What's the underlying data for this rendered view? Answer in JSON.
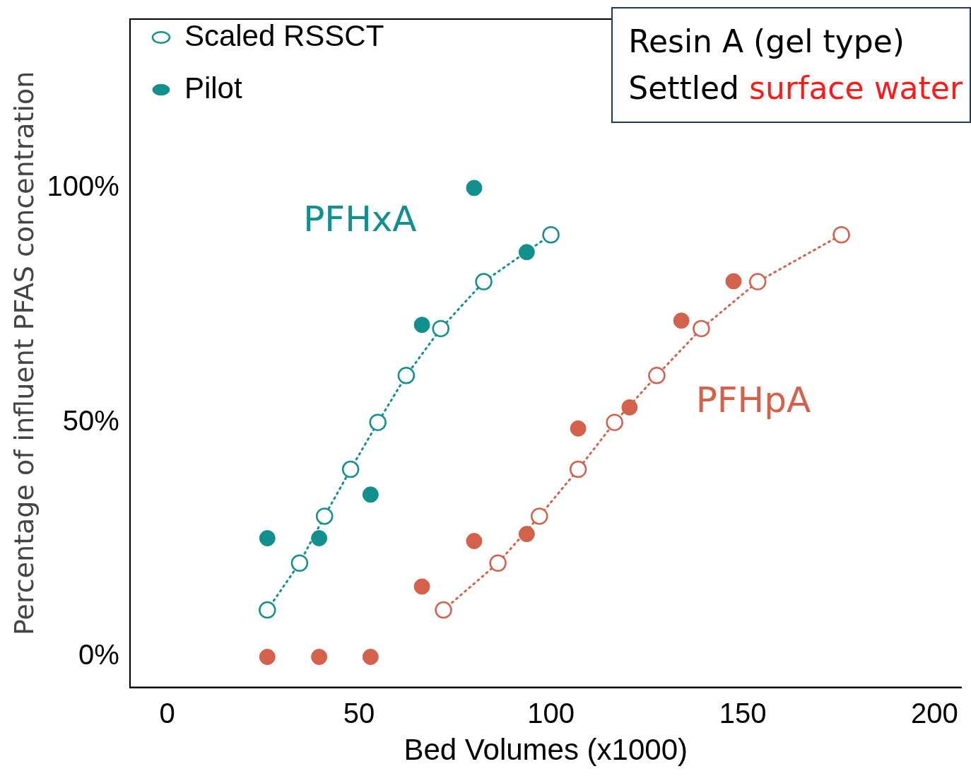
{
  "chart_data": {
    "type": "scatter",
    "title": "Resin A (gel type)",
    "subtitle": "Settled surface water",
    "xlabel": "Bed Volumes (x1000)",
    "ylabel": "Percentage of influent PFAS concentration",
    "xlim": [
      -9.7,
      207
    ],
    "xticks": [
      0,
      50,
      100,
      150,
      200
    ],
    "ylim": [
      -6.5,
      136
    ],
    "yticks": [
      {
        "value": 0,
        "label": "0%"
      },
      {
        "value": 50,
        "label": "50%"
      },
      {
        "value": 100,
        "label": "100%"
      }
    ],
    "grid": false,
    "legend": "top left",
    "marker": "circle",
    "annotations": [
      "PFHxA",
      "PFHpA"
    ],
    "series": [
      {
        "name": "Scaled RSSCT",
        "type": "line",
        "line_style": "dotted",
        "color": "#12908e",
        "x": [
          26.1,
          34.5,
          41.0,
          47.8,
          54.9,
          62.3,
          71.3,
          82.5,
          100.0
        ],
        "values": [
          10,
          20,
          30,
          40,
          50,
          60,
          70,
          80,
          90
        ]
      },
      {
        "name": "Pilot",
        "type": "scatter",
        "color": "#12908e",
        "x": [
          26.1,
          39.6,
          53.0,
          66.4,
          80.0,
          93.7
        ],
        "values": [
          25.3,
          25.3,
          34.6,
          70.8,
          100,
          86.3
        ]
      },
      {
        "type": "line",
        "line_style": "dotted",
        "color": "#d4614b",
        "x": [
          72.0,
          86.2,
          97.0,
          107.1,
          116.6,
          127.6,
          139.2,
          153.9,
          175.7
        ],
        "values": [
          10,
          20,
          30,
          40,
          50,
          60,
          70,
          80,
          90
        ]
      },
      {
        "type": "scatter",
        "color": "#d4614b",
        "x": [
          26.1,
          39.6,
          53.0,
          66.4,
          80.0,
          93.7,
          107.1,
          120.5,
          134.0,
          147.6
        ],
        "values": [
          0,
          0,
          0,
          15,
          24.7,
          26.2,
          48.7,
          53.2,
          71.7,
          80.1
        ]
      }
    ]
  }
}
